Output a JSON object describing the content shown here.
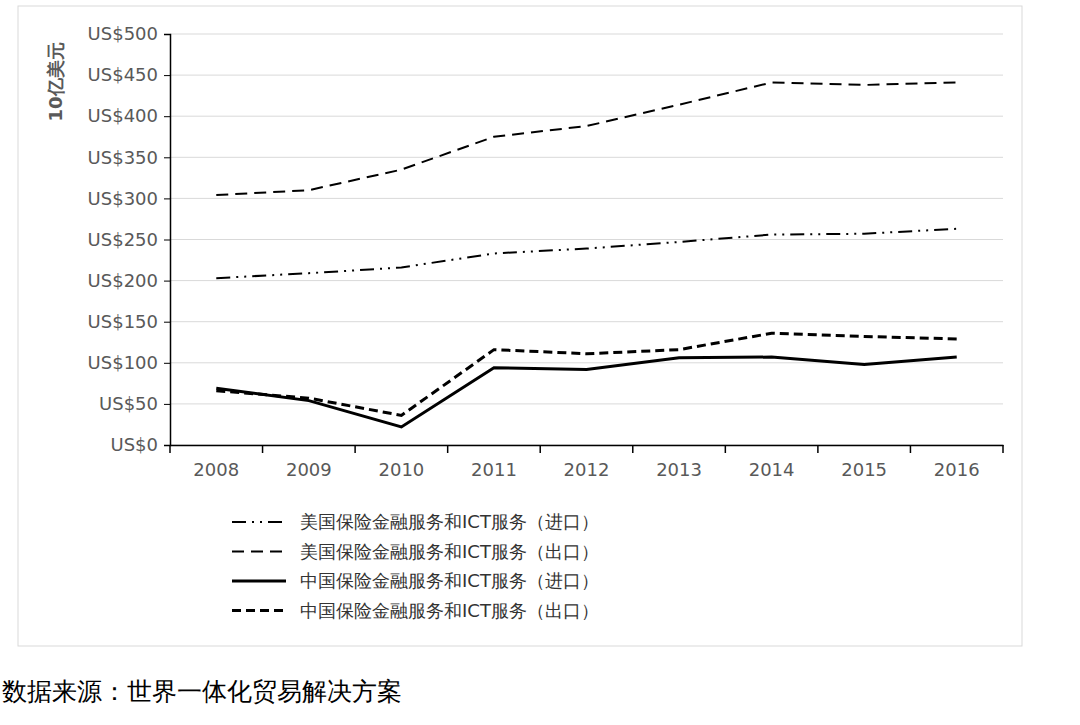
{
  "chart_data": {
    "type": "line",
    "y_label": "10亿美元",
    "source": "数据来源：世界一体化贸易解决方案",
    "categories": [
      "2008",
      "2009",
      "2010",
      "2011",
      "2012",
      "2013",
      "2014",
      "2015",
      "2016"
    ],
    "series": [
      {
        "name": "美国保险金融服务和ICT服务（进口）",
        "color": "#000000",
        "line_style": "dash-dot",
        "values": [
          203,
          209,
          216,
          233,
          239,
          247,
          256,
          257,
          263
        ]
      },
      {
        "name": "美国保险金融服务和ICT服务（出口）",
        "color": "#000000",
        "line_style": "long-dash",
        "values": [
          304,
          310,
          335,
          375,
          388,
          414,
          441,
          438,
          441
        ]
      },
      {
        "name": "中国保险金融服务和ICT服务（进口）",
        "color": "#000000",
        "line_style": "solid",
        "values": [
          69,
          54,
          22,
          94,
          92,
          106,
          107,
          98,
          107
        ]
      },
      {
        "name": "中国保险金融服务和ICT服务（出口）",
        "color": "#000000",
        "line_style": "short-dash",
        "values": [
          66,
          57,
          36,
          116,
          111,
          116,
          136,
          132,
          129
        ]
      }
    ],
    "ylim": [
      0,
      500
    ],
    "yticks": [
      {
        "value": 0,
        "label": "US$0"
      },
      {
        "value": 50,
        "label": "US$50"
      },
      {
        "value": 100,
        "label": "US$100"
      },
      {
        "value": 150,
        "label": "US$150"
      },
      {
        "value": 200,
        "label": "US$200"
      },
      {
        "value": 250,
        "label": "US$250"
      },
      {
        "value": 300,
        "label": "US$300"
      },
      {
        "value": 350,
        "label": "US$350"
      },
      {
        "value": 400,
        "label": "US$400"
      },
      {
        "value": 450,
        "label": "US$450"
      },
      {
        "value": 500,
        "label": "US$500"
      }
    ],
    "grid": true,
    "legend": "bottom"
  }
}
